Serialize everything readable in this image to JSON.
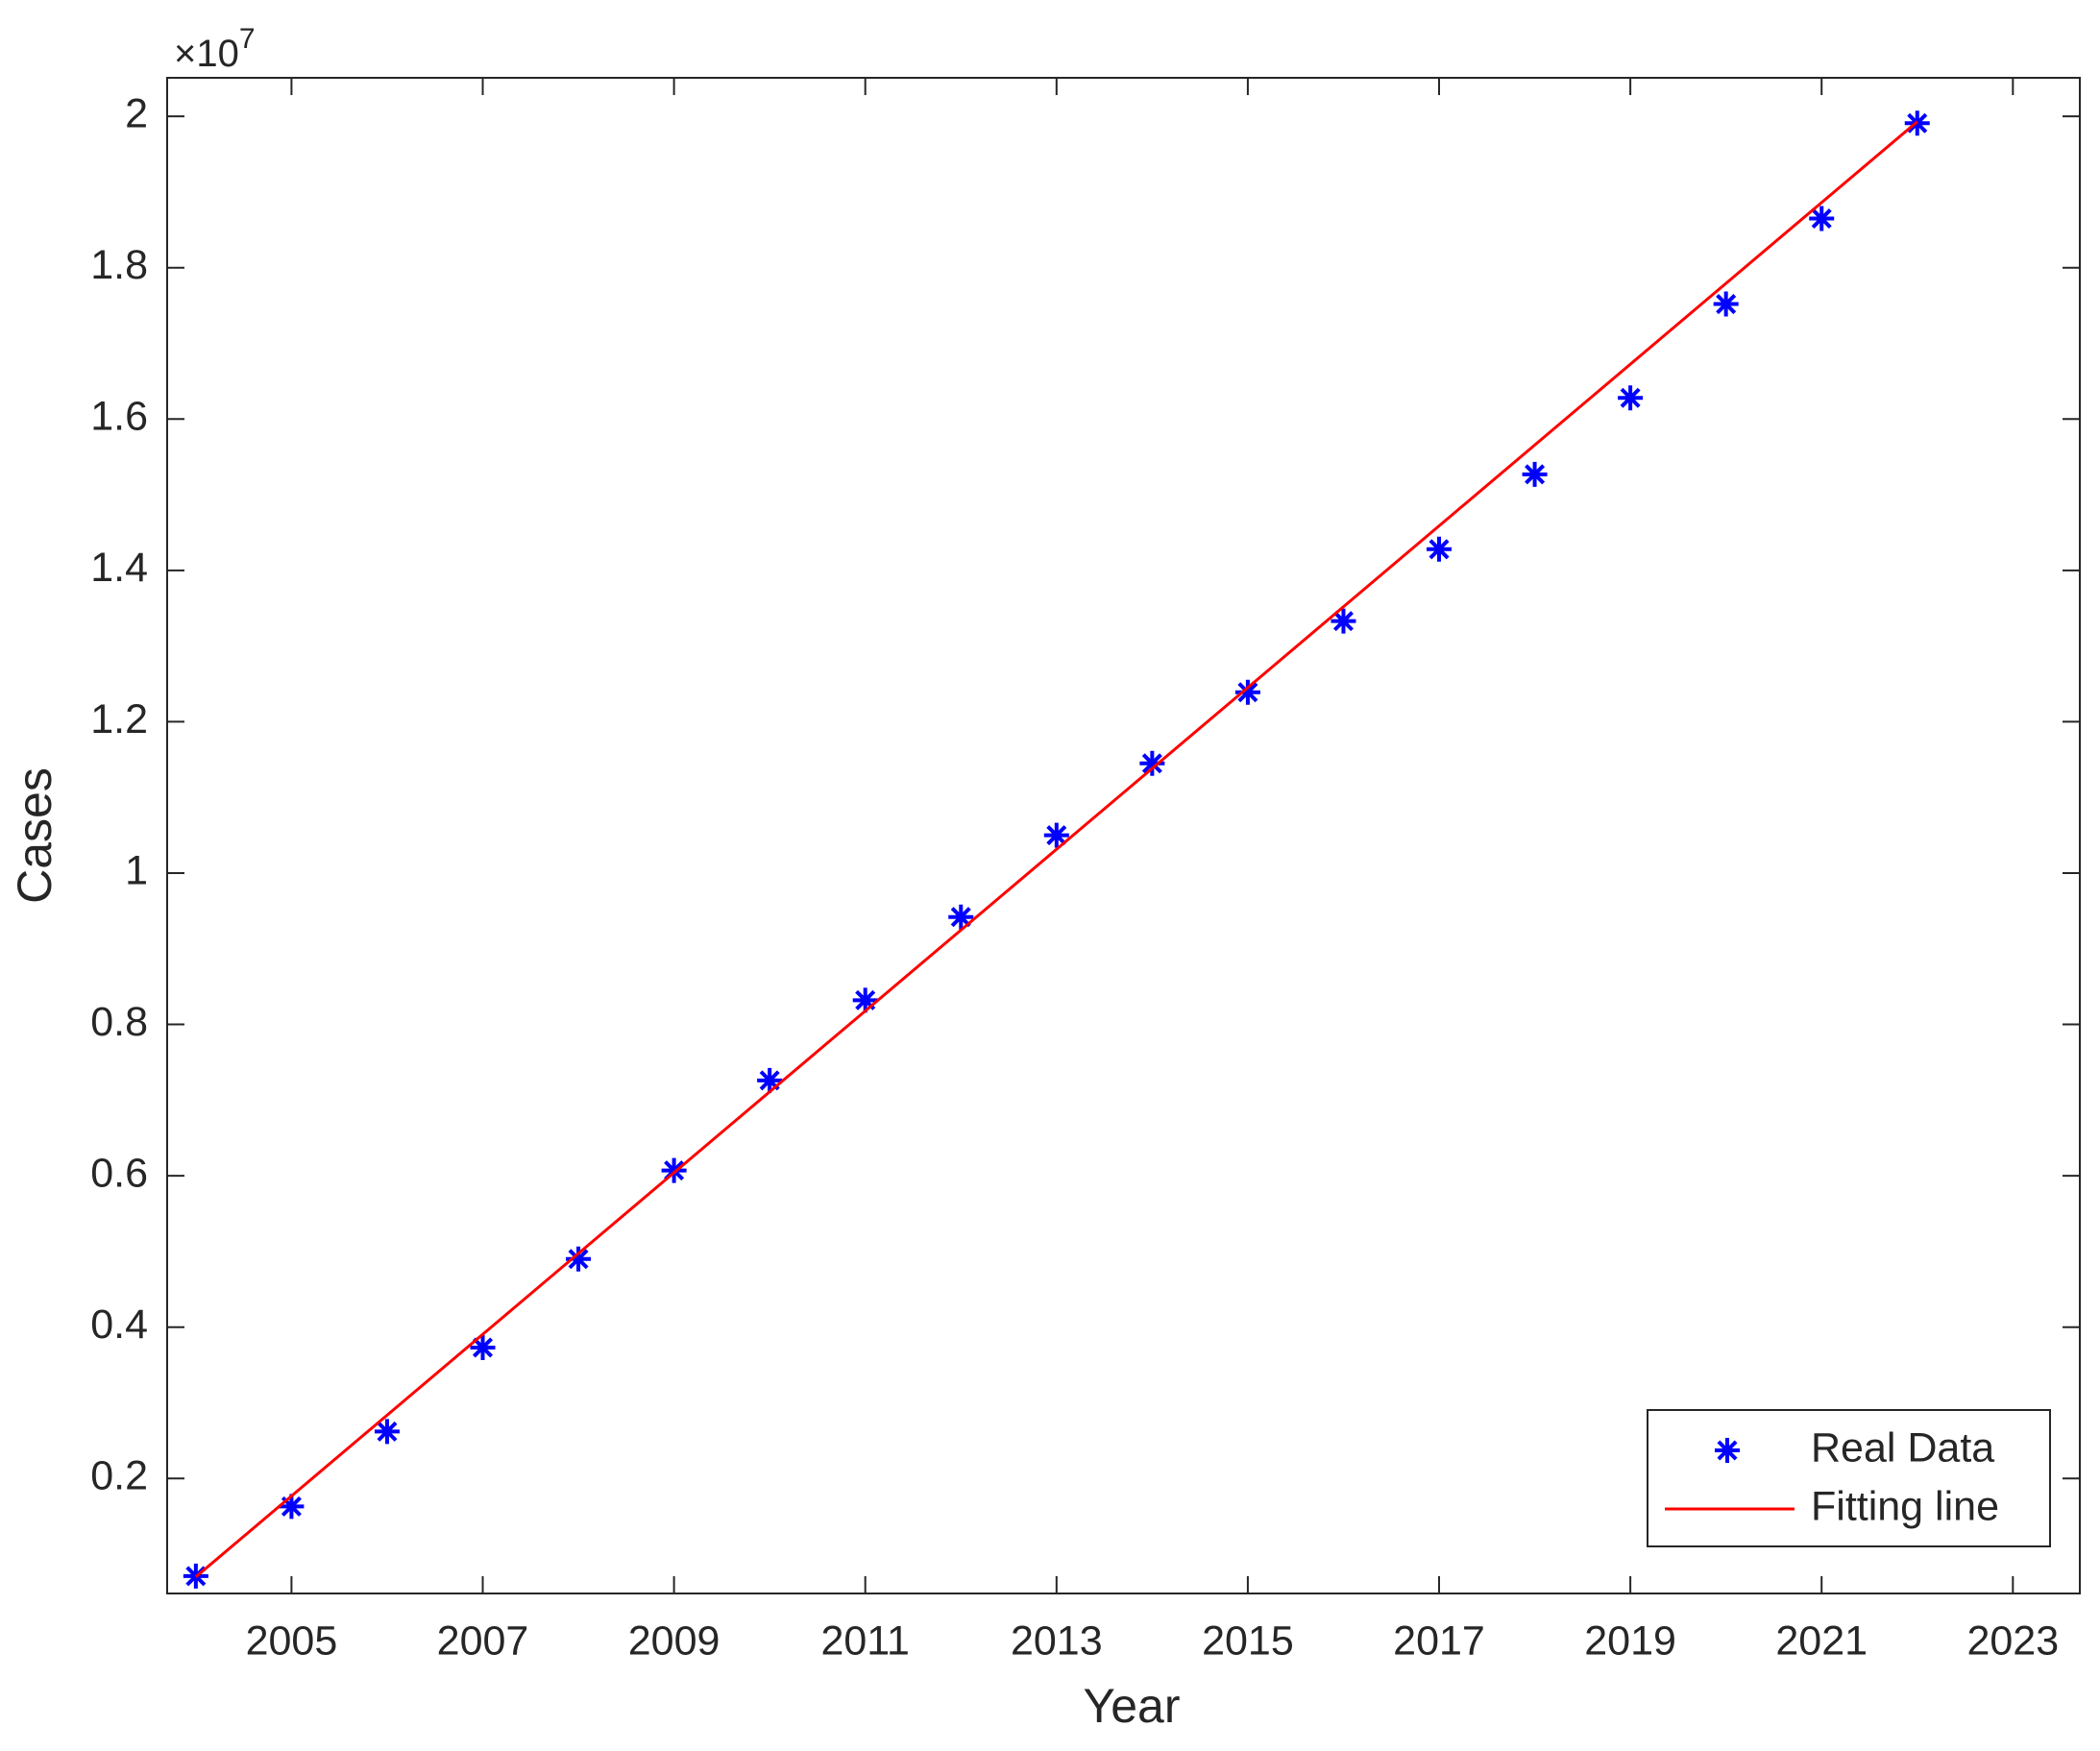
{
  "chart_data": {
    "type": "scatter_line",
    "x_label": "Year",
    "y_label": "Cases",
    "y_exponent": {
      "base": "×10",
      "power": "7"
    },
    "xlim": [
      2003.7,
      2023.7
    ],
    "xticks": [
      2005,
      2007,
      2009,
      2011,
      2013,
      2015,
      2017,
      2019,
      2021,
      2023
    ],
    "ylim": [
      0.048,
      2.051
    ],
    "yticks": [
      0.2,
      0.4,
      0.6,
      0.8,
      1,
      1.2,
      1.4,
      1.6,
      1.8,
      2
    ],
    "legend": "lower right",
    "series": [
      {
        "name": "Real Data",
        "color": "#0000ff",
        "marker": "asterisk",
        "x": [
          2004,
          2005,
          2006,
          2007,
          2008,
          2009,
          2010,
          2011,
          2012,
          2013,
          2014,
          2015,
          2016,
          2017,
          2018,
          2019,
          2020,
          2021,
          2022
        ],
        "values": [
          0.071,
          0.163,
          0.262,
          0.373,
          0.49,
          0.607,
          0.726,
          0.832,
          0.942,
          1.05,
          1.145,
          1.239,
          1.333,
          1.428,
          1.527,
          1.628,
          1.752,
          1.865,
          1.991
        ]
      },
      {
        "name": "Fitting line",
        "color": "#ff0000",
        "marker": "line",
        "x": [
          2004,
          2022
        ],
        "values": [
          0.07,
          1.993
        ]
      }
    ]
  }
}
